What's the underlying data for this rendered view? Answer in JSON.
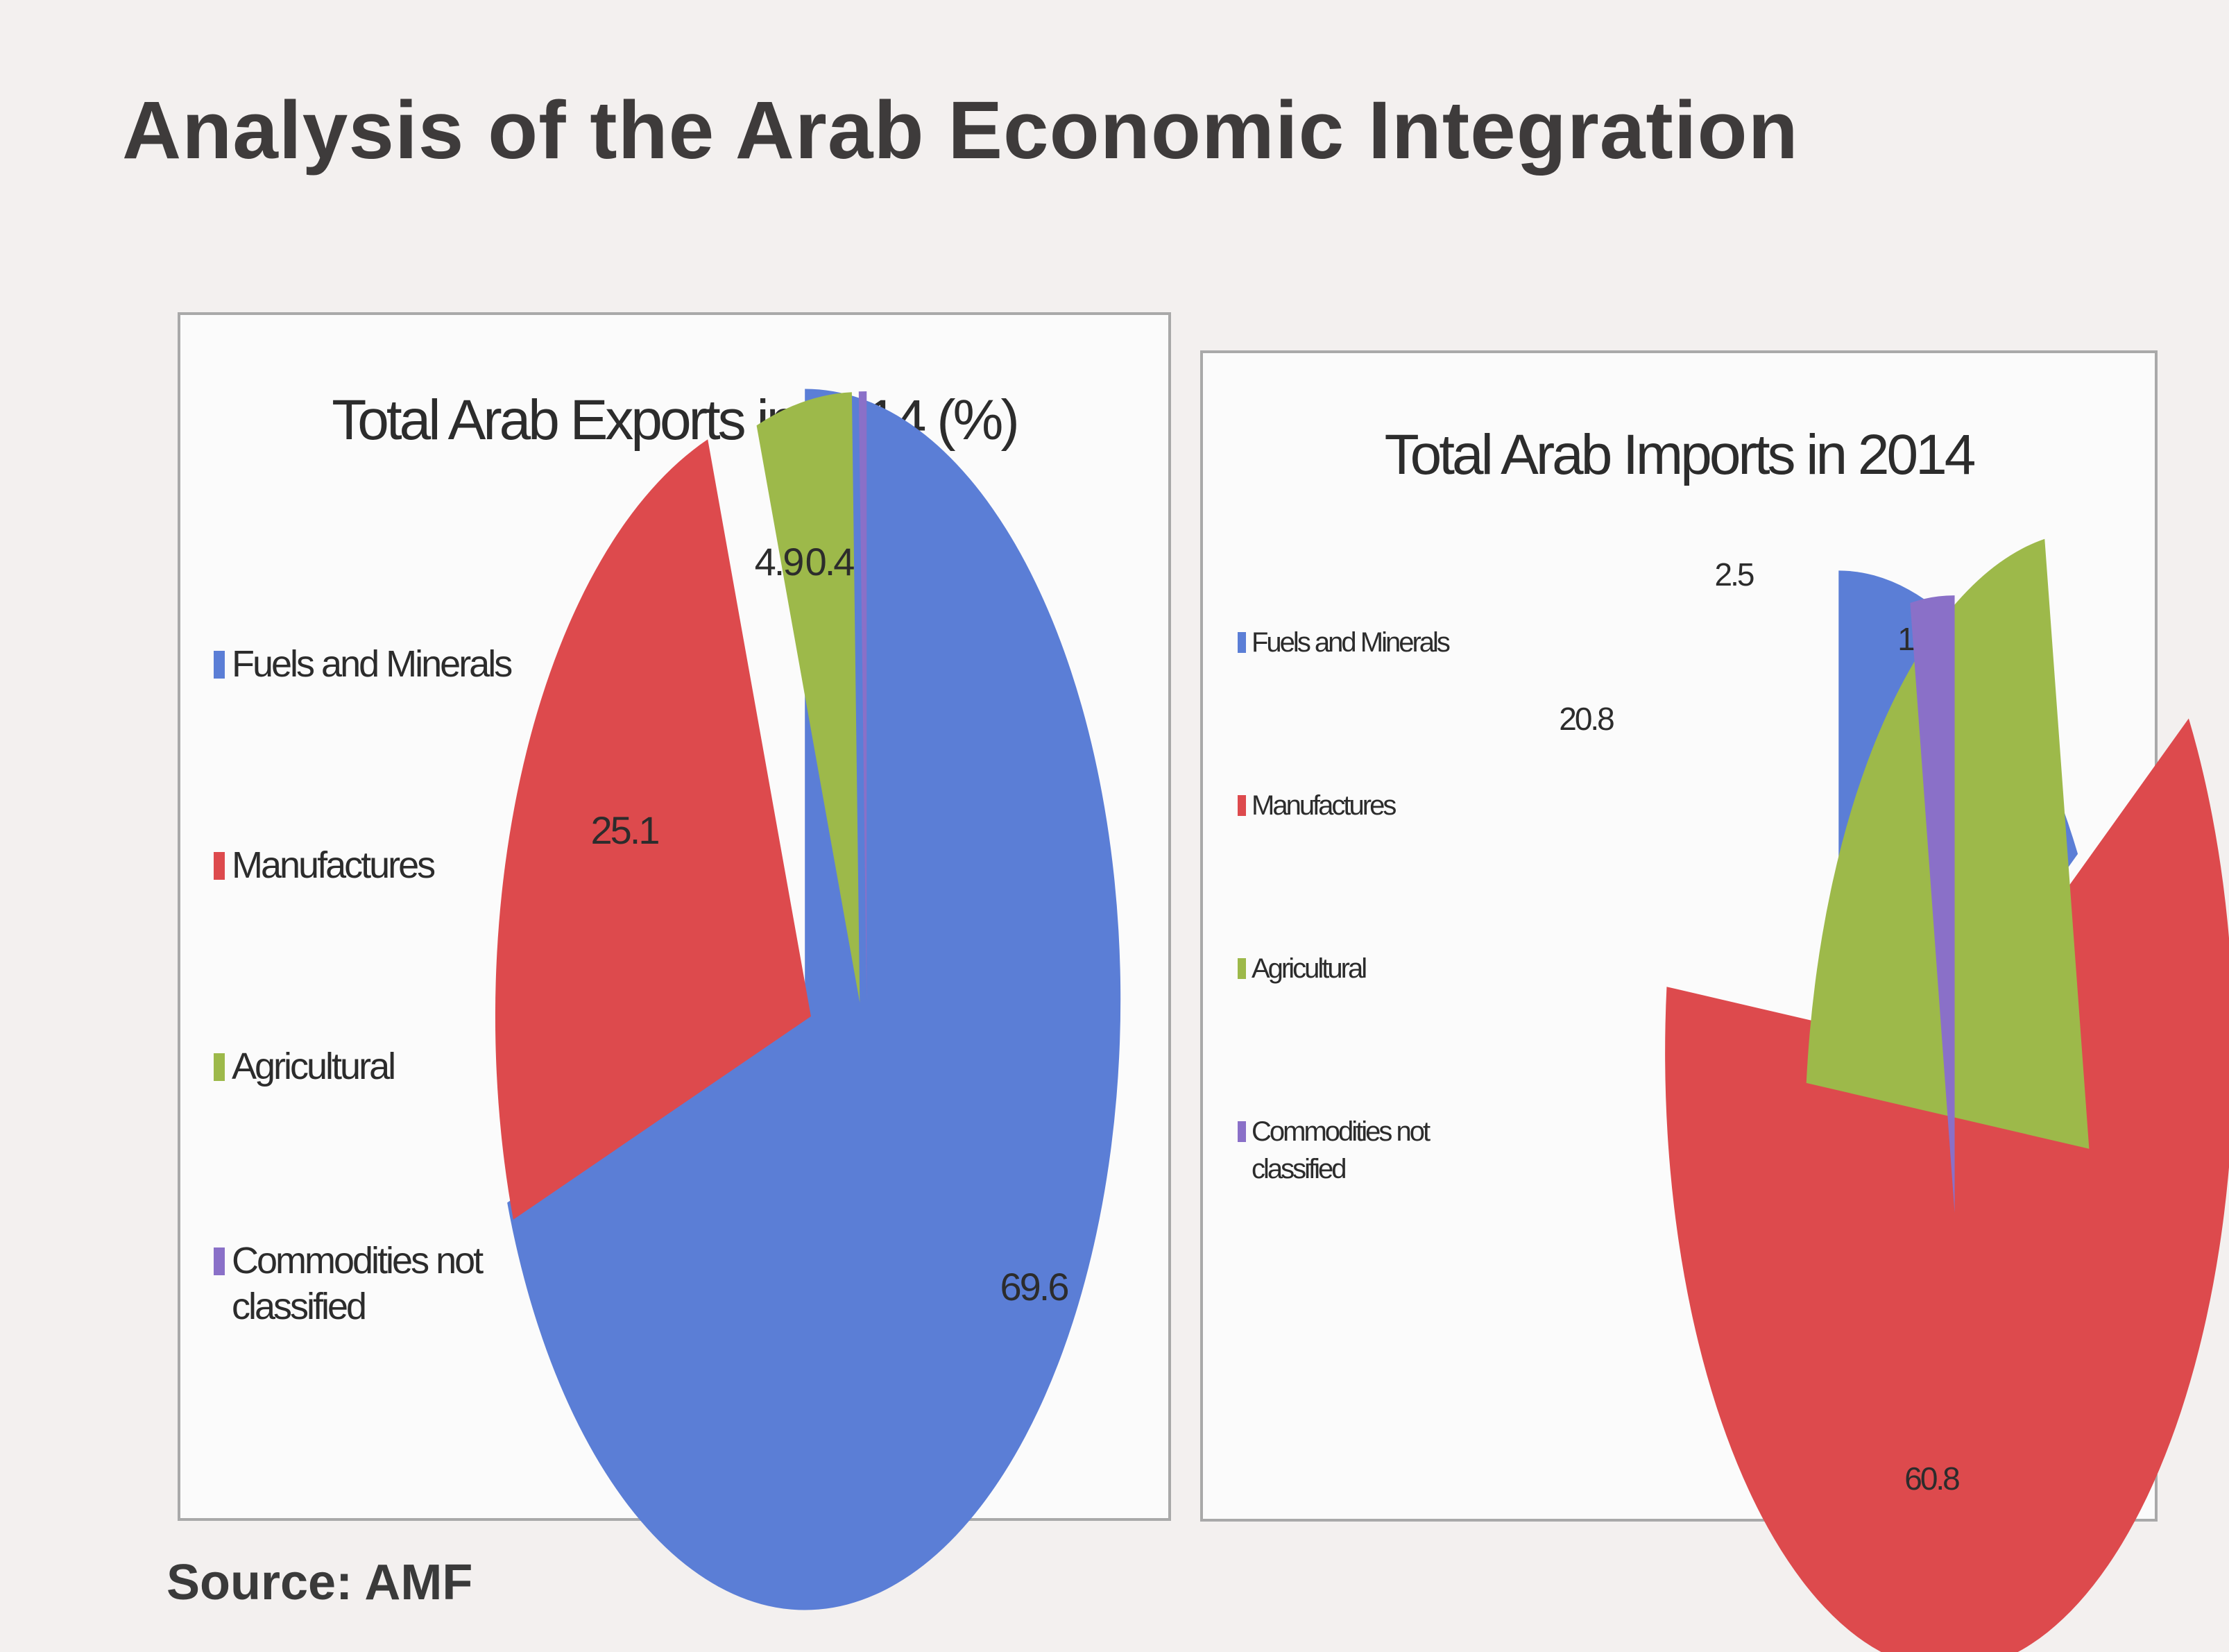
{
  "slide": {
    "title": "Analysis of the Arab Economic Integration",
    "source": "Source: AMF"
  },
  "colors": {
    "fuels": "#5b7ed6",
    "manufactures": "#dd4a4d",
    "agricultural": "#9db94a",
    "commodities": "#8a70c8"
  },
  "chart_data": [
    {
      "type": "pie",
      "exploded": true,
      "title": "Total Arab Exports in 2014 (%)",
      "legend_position": "left",
      "slices": [
        {
          "label": "Fuels and Minerals",
          "value": 69.6,
          "display": "69.6",
          "color": "#5b7ed6"
        },
        {
          "label": "Manufactures",
          "value": 25.1,
          "display": "25.1",
          "color": "#dd4a4d"
        },
        {
          "label": "Agricultural",
          "value": 4.9,
          "display": "4.9",
          "color": "#9db94a"
        },
        {
          "label": "Commodities not classified",
          "value": 0.4,
          "display": "0.4",
          "color": "#8a70c8"
        }
      ]
    },
    {
      "type": "pie",
      "exploded": true,
      "title": "Total Arab Imports in 2014",
      "legend_position": "left",
      "slices": [
        {
          "label": "Fuels and Minerals",
          "value": 15.9,
          "display": "15.9",
          "color": "#5b7ed6"
        },
        {
          "label": "Manufactures",
          "value": 60.8,
          "display": "60.8",
          "color": "#dd4a4d"
        },
        {
          "label": "Agricultural",
          "value": 20.8,
          "display": "20.8",
          "color": "#9db94a"
        },
        {
          "label": "Commodities not classified",
          "value": 2.5,
          "display": "2.5",
          "color": "#8a70c8"
        }
      ]
    }
  ]
}
